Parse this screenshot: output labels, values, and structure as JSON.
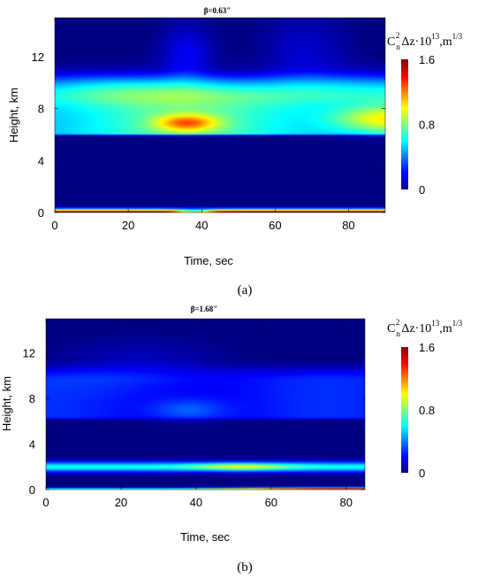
{
  "chart_data": [
    {
      "type": "heatmap",
      "panel_label": "(a)",
      "title": "β=0.63\"",
      "xlabel": "Time, sec",
      "ylabel": "Height, km",
      "xlim": [
        0,
        90
      ],
      "ylim": [
        0,
        15
      ],
      "xticks": [
        0,
        20,
        40,
        60,
        80
      ],
      "yticks": [
        0,
        4,
        8,
        12
      ],
      "colorbar": {
        "title": "C_n^2 Δz·10^13, m^1/3",
        "title_parts": {
          "c": "C",
          "sub": "n",
          "sup": "2",
          "mid": "Δz·10",
          "exp": "13",
          "unit": ",m",
          "unit_exp": "1/3"
        },
        "range": [
          0,
          1.6
        ],
        "ticks": [
          0,
          0.8,
          1.6
        ]
      },
      "colors": {
        "low": "#00008f",
        "mid": "#00ffff",
        "high": "#800000"
      },
      "layers": [
        {
          "name": "ground",
          "height_km": 0.1,
          "value": 1.6
        },
        {
          "name": "layer-6-11km",
          "height_km": [
            6,
            11
          ],
          "value": 0.85
        },
        {
          "name": "hot-spot-1",
          "time_sec": 36,
          "height_km": 6.9,
          "value": 1.1
        },
        {
          "name": "hot-spot-2",
          "time_sec": 88,
          "height_km": 7.2,
          "value": 1.1
        }
      ]
    },
    {
      "type": "heatmap",
      "panel_label": "(b)",
      "title": "β=1.68\"",
      "xlabel": "Time, sec",
      "ylabel": "Height, km",
      "xlim": [
        0,
        85
      ],
      "ylim": [
        0,
        15
      ],
      "xticks": [
        0,
        20,
        40,
        60,
        80
      ],
      "yticks": [
        0,
        4,
        8,
        12
      ],
      "colorbar": {
        "title": "C_n^2 Δz·10^13, m^1/3",
        "title_parts": {
          "c": "C",
          "sub": "n",
          "sup": "2",
          "mid": "Δz·10",
          "exp": "13",
          "unit": ",m",
          "unit_exp": "1/3"
        },
        "range": [
          0,
          1.6
        ],
        "ticks": [
          0,
          0.8,
          1.6
        ]
      },
      "colors": {
        "low": "#00008f",
        "mid": "#00ffff",
        "high": "#800000"
      },
      "layers": [
        {
          "name": "ground",
          "height_km": 0.1,
          "value": 1.6
        },
        {
          "name": "layer-2km",
          "height_km": 2.0,
          "value": 0.9
        },
        {
          "name": "layer-6-11km",
          "height_km": [
            6,
            11
          ],
          "value": 0.35
        }
      ]
    }
  ]
}
